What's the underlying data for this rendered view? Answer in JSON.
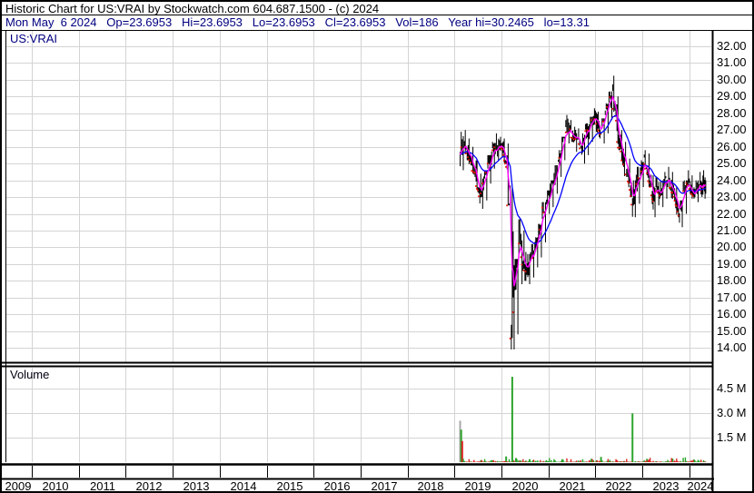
{
  "header": {
    "line1": "Historic Chart for US:VRAI by Stockwatch.com 604.687.1500 - (c) 2024",
    "line2": "Mon May  6 2024   Op=23.6953   Hi=23.6953   Lo=23.6953   Cl=23.6953   Vol=186   Year hi=30.2465   lo=13.31"
  },
  "price_panel": {
    "symbol_label": "US:VRAI"
  },
  "volume_panel": {
    "label": "Volume"
  },
  "chart_data": {
    "type": "ohlc",
    "title": "Historic Chart for US:VRAI",
    "symbol": "US:VRAI",
    "last_trade": {
      "date": "Mon May 6 2024",
      "open": 23.6953,
      "high": 23.6953,
      "low": 23.6953,
      "close": 23.6953,
      "volume": 186,
      "year_high": 30.2465,
      "year_low": 13.31
    },
    "x_axis": {
      "start_year_fraction": 2009.45,
      "end_year_fraction": 2024.47,
      "year_labels": [
        "2009",
        "2010",
        "2011",
        "2012",
        "2013",
        "2014",
        "2015",
        "2016",
        "2017",
        "2018",
        "2019",
        "2020",
        "2021",
        "2022",
        "2023",
        "2024"
      ]
    },
    "price_axis": {
      "min": 14,
      "max": 32,
      "step": 1,
      "scale": "linear",
      "grid": true,
      "label_decimals": 2
    },
    "volume_axis": {
      "unit": "millions",
      "ticks": [
        {
          "value": 4.5,
          "label": "4.5 M"
        },
        {
          "value": 3.0,
          "label": "3.0 M"
        },
        {
          "value": 1.5,
          "label": "1.5 M"
        }
      ]
    },
    "series_styles": {
      "bar_color": "#000000",
      "down_close_tick_color": "#ee1100",
      "ma_fast_color": "#ff00ff",
      "ma_slow_color": "#0000ff",
      "volume_up_color": "#2ca42c",
      "volume_down_color": "#dd2222",
      "volume_block_color": "#a8a8a8",
      "grid_color": "#d4d4d4"
    },
    "price_monthly": [
      [
        2019.12,
        25.8,
        26.9,
        24.6
      ],
      [
        2019.21,
        26.1,
        27.0,
        25.2
      ],
      [
        2019.29,
        25.7,
        26.5,
        24.9
      ],
      [
        2019.37,
        25.1,
        26.0,
        24.2
      ],
      [
        2019.46,
        24.2,
        25.2,
        23.2
      ],
      [
        2019.54,
        23.3,
        24.4,
        22.3
      ],
      [
        2019.62,
        23.8,
        24.6,
        22.8
      ],
      [
        2019.71,
        24.8,
        25.5,
        23.8
      ],
      [
        2019.79,
        25.6,
        26.3,
        24.7
      ],
      [
        2019.87,
        26.0,
        26.8,
        25.2
      ],
      [
        2019.96,
        26.1,
        26.6,
        25.4
      ],
      [
        2020.04,
        25.9,
        26.5,
        25.0
      ],
      [
        2020.12,
        24.6,
        26.2,
        22.5
      ],
      [
        2020.21,
        15.5,
        23.5,
        13.9
      ],
      [
        2020.29,
        18.0,
        19.3,
        14.8
      ],
      [
        2020.37,
        20.8,
        21.7,
        17.8
      ],
      [
        2020.46,
        19.2,
        21.0,
        18.0
      ],
      [
        2020.54,
        18.6,
        19.6,
        17.8
      ],
      [
        2020.62,
        19.3,
        20.2,
        18.2
      ],
      [
        2020.71,
        19.8,
        20.6,
        18.8
      ],
      [
        2020.79,
        20.6,
        21.4,
        19.4
      ],
      [
        2020.87,
        22.0,
        22.7,
        20.3
      ],
      [
        2020.96,
        22.8,
        23.4,
        22.0
      ],
      [
        2021.04,
        23.3,
        24.0,
        22.4
      ],
      [
        2021.12,
        24.2,
        24.9,
        23.2
      ],
      [
        2021.21,
        25.2,
        25.8,
        24.2
      ],
      [
        2021.29,
        26.0,
        26.6,
        25.2
      ],
      [
        2021.37,
        27.2,
        27.9,
        26.2
      ],
      [
        2021.46,
        27.0,
        27.6,
        26.3
      ],
      [
        2021.54,
        26.4,
        27.2,
        25.7
      ],
      [
        2021.62,
        26.6,
        27.1,
        25.9
      ],
      [
        2021.71,
        25.8,
        26.8,
        25.0
      ],
      [
        2021.79,
        26.8,
        27.4,
        25.5
      ],
      [
        2021.87,
        27.2,
        27.8,
        26.3
      ],
      [
        2021.96,
        27.8,
        28.3,
        26.9
      ],
      [
        2022.04,
        27.4,
        28.1,
        26.5
      ],
      [
        2022.12,
        27.0,
        27.7,
        26.2
      ],
      [
        2022.21,
        28.0,
        28.6,
        26.8
      ],
      [
        2022.29,
        28.6,
        29.3,
        27.6
      ],
      [
        2022.37,
        29.2,
        30.2465,
        27.8
      ],
      [
        2022.46,
        27.0,
        29.0,
        25.8
      ],
      [
        2022.54,
        25.8,
        27.0,
        24.8
      ],
      [
        2022.62,
        25.2,
        26.3,
        24.2
      ],
      [
        2022.71,
        24.0,
        25.3,
        23.0
      ],
      [
        2022.79,
        22.6,
        24.0,
        21.8
      ],
      [
        2022.87,
        24.0,
        24.8,
        22.6
      ],
      [
        2022.96,
        24.4,
        25.2,
        23.6
      ],
      [
        2023.04,
        25.2,
        25.8,
        24.3
      ],
      [
        2023.12,
        24.4,
        25.6,
        23.6
      ],
      [
        2023.21,
        22.8,
        24.3,
        21.8
      ],
      [
        2023.29,
        23.4,
        24.2,
        22.5
      ],
      [
        2023.37,
        23.2,
        24.0,
        22.4
      ],
      [
        2023.46,
        23.8,
        24.5,
        22.9
      ],
      [
        2023.54,
        24.2,
        24.8,
        23.4
      ],
      [
        2023.62,
        23.6,
        24.5,
        22.8
      ],
      [
        2023.71,
        22.6,
        23.6,
        21.8
      ],
      [
        2023.79,
        21.8,
        22.8,
        21.2
      ],
      [
        2023.87,
        23.4,
        24.0,
        22.0
      ],
      [
        2023.96,
        24.0,
        24.6,
        23.2
      ],
      [
        2024.04,
        23.4,
        24.3,
        22.9
      ],
      [
        2024.12,
        23.2,
        24.0,
        22.7
      ],
      [
        2024.21,
        23.8,
        24.5,
        23.0
      ],
      [
        2024.29,
        23.5,
        24.6,
        22.9
      ],
      [
        2024.35,
        23.6953,
        24.0,
        23.2
      ]
    ],
    "volume_spikes_millions": [
      [
        2019.115,
        2.55,
        "block"
      ],
      [
        2019.142,
        2.0,
        "up"
      ],
      [
        2019.165,
        1.3,
        "down"
      ],
      [
        2020.1,
        0.35,
        "up"
      ],
      [
        2020.235,
        5.25,
        "up"
      ],
      [
        2020.31,
        0.25,
        "up"
      ],
      [
        2020.6,
        0.18,
        "up"
      ],
      [
        2021.32,
        0.15,
        "up"
      ],
      [
        2021.92,
        0.2,
        "up"
      ],
      [
        2022.13,
        0.32,
        "up"
      ],
      [
        2022.8,
        3.0,
        "up"
      ],
      [
        2023.1,
        0.2,
        "up"
      ],
      [
        2023.65,
        0.22,
        "up"
      ],
      [
        2024.1,
        0.16,
        "up"
      ]
    ],
    "moving_averages": {
      "fast_ema_points": 5,
      "slow_ema_points": 30
    },
    "noise_seed": 1337
  }
}
